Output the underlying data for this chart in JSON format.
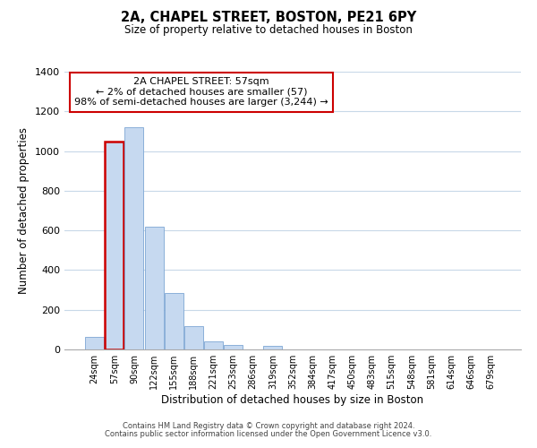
{
  "title": "2A, CHAPEL STREET, BOSTON, PE21 6PY",
  "subtitle": "Size of property relative to detached houses in Boston",
  "xlabel": "Distribution of detached houses by size in Boston",
  "ylabel": "Number of detached properties",
  "footnote1": "Contains HM Land Registry data © Crown copyright and database right 2024.",
  "footnote2": "Contains public sector information licensed under the Open Government Licence v3.0.",
  "bar_labels": [
    "24sqm",
    "57sqm",
    "90sqm",
    "122sqm",
    "155sqm",
    "188sqm",
    "221sqm",
    "253sqm",
    "286sqm",
    "319sqm",
    "352sqm",
    "384sqm",
    "417sqm",
    "450sqm",
    "483sqm",
    "515sqm",
    "548sqm",
    "581sqm",
    "614sqm",
    "646sqm",
    "679sqm"
  ],
  "bar_values": [
    65,
    1050,
    1120,
    620,
    285,
    118,
    42,
    22,
    0,
    18,
    0,
    0,
    0,
    0,
    0,
    0,
    0,
    0,
    0,
    0,
    0
  ],
  "bar_color": "#c6d9f0",
  "bar_edge_color": "#7da6d4",
  "highlight_index": 1,
  "highlight_edge_color": "#cc0000",
  "ylim": [
    0,
    1400
  ],
  "yticks": [
    0,
    200,
    400,
    600,
    800,
    1000,
    1200,
    1400
  ],
  "annotation_title": "2A CHAPEL STREET: 57sqm",
  "annotation_line1": "← 2% of detached houses are smaller (57)",
  "annotation_line2": "98% of semi-detached houses are larger (3,244) →",
  "annotation_box_color": "#ffffff",
  "annotation_border_color": "#cc0000",
  "bg_color": "#ffffff",
  "grid_color": "#c8d8e8"
}
